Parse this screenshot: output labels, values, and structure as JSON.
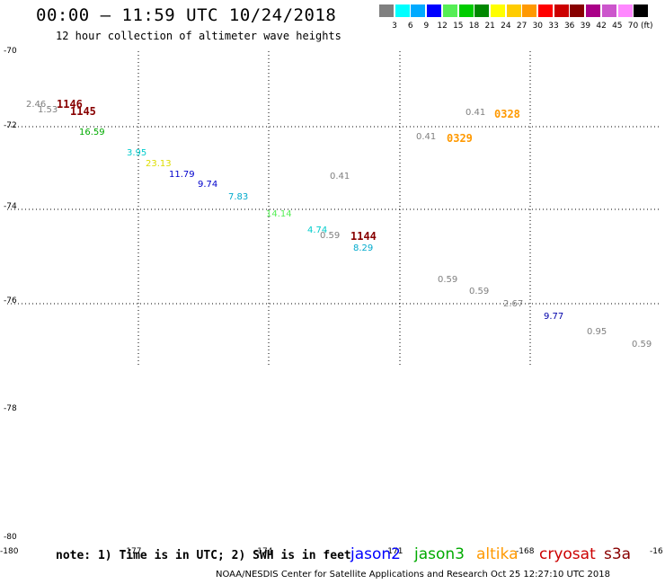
{
  "title": "00:00 — 11:59 UTC 10/24/2018",
  "subtitle": "12 hour collection of altimeter wave heights",
  "legend": {
    "unit": "(ft)",
    "ticks": [
      "3",
      "6",
      "9",
      "12",
      "15",
      "18",
      "21",
      "24",
      "27",
      "30",
      "33",
      "36",
      "39",
      "42",
      "45",
      "70"
    ],
    "colors": [
      "#808080",
      "#00ffff",
      "#00aaff",
      "#0000ff",
      "#55ee55",
      "#00cc00",
      "#008800",
      "#ffff00",
      "#ffcc00",
      "#ff9900",
      "#ff0000",
      "#cc0000",
      "#880000",
      "#aa0088",
      "#cc55cc",
      "#ff88ff",
      "#000000"
    ]
  },
  "axes": {
    "lat_labels": [
      "-70",
      "-72",
      "-74",
      "-76",
      "-78",
      "-80"
    ],
    "lon_labels": [
      "-180",
      "-177",
      "-174",
      "-171",
      "-168",
      "-16"
    ]
  },
  "observations": [
    {
      "text": "2.46",
      "color": "#808080",
      "kind": "value"
    },
    {
      "text": "1.53",
      "color": "#808080",
      "kind": "value"
    },
    {
      "text": "1146",
      "color": "#880000",
      "kind": "time"
    },
    {
      "text": "1145",
      "color": "#880000",
      "kind": "time"
    },
    {
      "text": "16.59",
      "color": "#00aa00",
      "kind": "value"
    },
    {
      "text": "3.95",
      "color": "#00cccc",
      "kind": "value"
    },
    {
      "text": "23.13",
      "color": "#dddd00",
      "kind": "value"
    },
    {
      "text": "11.79",
      "color": "#0000cc",
      "kind": "value"
    },
    {
      "text": "9.74",
      "color": "#0000cc",
      "kind": "value"
    },
    {
      "text": "7.83",
      "color": "#00aacc",
      "kind": "value"
    },
    {
      "text": "14.14",
      "color": "#55ee55",
      "kind": "value"
    },
    {
      "text": "4.74",
      "color": "#00cccc",
      "kind": "value"
    },
    {
      "text": "0.59",
      "color": "#808080",
      "kind": "value"
    },
    {
      "text": "1144",
      "color": "#880000",
      "kind": "time"
    },
    {
      "text": "8.29",
      "color": "#00aacc",
      "kind": "value"
    },
    {
      "text": "0.41",
      "color": "#808080",
      "kind": "value"
    },
    {
      "text": "0.41",
      "color": "#808080",
      "kind": "value"
    },
    {
      "text": "0328",
      "color": "#ff9900",
      "kind": "time"
    },
    {
      "text": "0.41",
      "color": "#808080",
      "kind": "value"
    },
    {
      "text": "0329",
      "color": "#ff9900",
      "kind": "time"
    },
    {
      "text": "0.59",
      "color": "#808080",
      "kind": "value"
    },
    {
      "text": "0.59",
      "color": "#808080",
      "kind": "value"
    },
    {
      "text": "2.67",
      "color": "#808080",
      "kind": "value"
    },
    {
      "text": "9.77",
      "color": "#0000aa",
      "kind": "value"
    },
    {
      "text": "0.95",
      "color": "#808080",
      "kind": "value"
    },
    {
      "text": "0.59",
      "color": "#808080",
      "kind": "value"
    }
  ],
  "footer": {
    "note": "note: 1) Time is in UTC; 2) SWH is in feet",
    "satellites": [
      {
        "name": "jason2",
        "color": "#0000ff"
      },
      {
        "name": "jason3",
        "color": "#00aa00"
      },
      {
        "name": "altika",
        "color": "#ff9900"
      },
      {
        "name": "cryosat",
        "color": "#cc0000"
      },
      {
        "name": "s3a",
        "color": "#880000"
      }
    ],
    "credit": "NOAA/NESDIS Center for Satellite Applications and Research    Oct 25 12:27:10 UTC 2018"
  }
}
